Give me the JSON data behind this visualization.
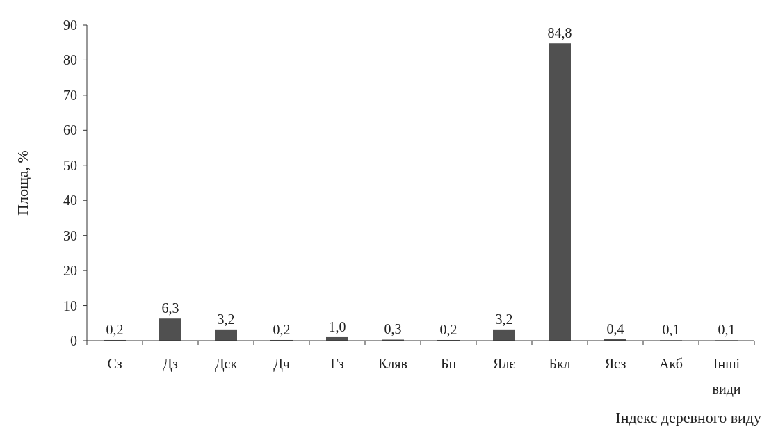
{
  "chart_data": {
    "type": "bar",
    "xlabel": "Індекс деревного виду",
    "ylabel": "Площа, %",
    "categories": [
      "Сз",
      "Дз",
      "Дск",
      "Дч",
      "Гз",
      "Кляв",
      "Бп",
      "Ялє",
      "Бкл",
      "Ясз",
      "Акб",
      "Інші види"
    ],
    "values": [
      0.2,
      6.3,
      3.2,
      0.2,
      1.0,
      0.3,
      0.2,
      3.2,
      84.8,
      0.4,
      0.1,
      0.1
    ],
    "value_labels": [
      "0,2",
      "6,3",
      "3,2",
      "0,2",
      "1,0",
      "0,3",
      "0,2",
      "3,2",
      "84,8",
      "0,4",
      "0,1",
      "0,1"
    ],
    "color": "#505050",
    "ylim": [
      0,
      90
    ],
    "yticks": [
      0,
      10,
      20,
      30,
      40,
      50,
      60,
      70,
      80,
      90
    ],
    "grid": false
  }
}
